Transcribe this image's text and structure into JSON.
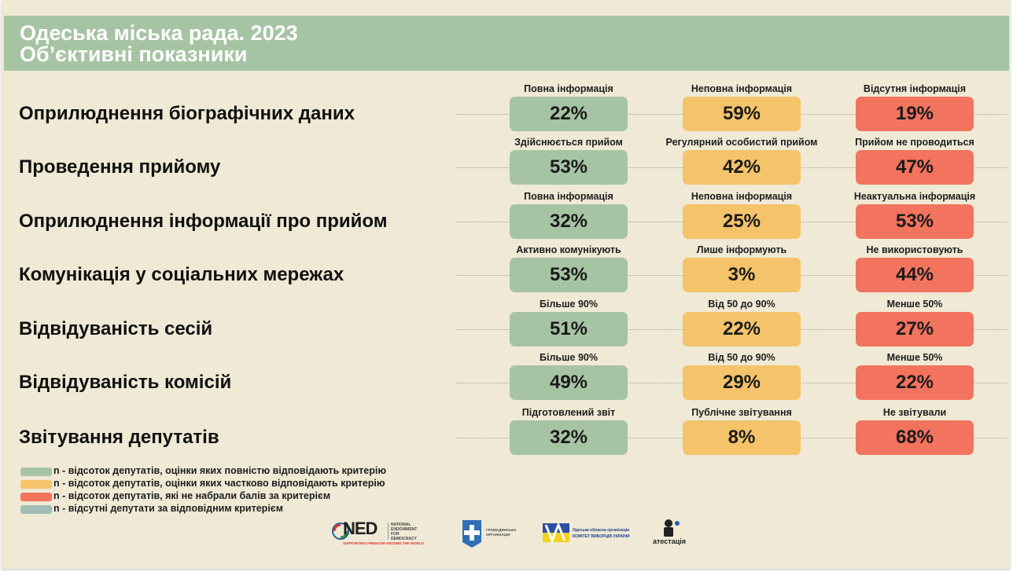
{
  "header": {
    "title_line1": "Одеська міська рада. 2023",
    "title_line2": "Об’єктивні показники"
  },
  "colors": {
    "header_bg": "#a6c4a3",
    "slide_bg": "#efe9d5",
    "full": "#a6c4a3",
    "partial": "#f4c36a",
    "none": "#f2735e",
    "absent": "#9fbfb6"
  },
  "rows": [
    {
      "title": "Оприлюднення біографічних даних",
      "cells": [
        {
          "label": "Повна інформація",
          "value": "22%"
        },
        {
          "label": "Неповна інформація",
          "value": "59%"
        },
        {
          "label": "Відсутня інформація",
          "value": "19%"
        }
      ]
    },
    {
      "title": "Проведення прийому",
      "cells": [
        {
          "label": "Здійснюється прийом",
          "value": "53%"
        },
        {
          "label": "Регулярний особистий прийом",
          "value": "42%"
        },
        {
          "label": "Прийом не проводиться",
          "value": "47%"
        }
      ]
    },
    {
      "title": "Оприлюднення інформації про прийом",
      "cells": [
        {
          "label": "Повна інформація",
          "value": "32%"
        },
        {
          "label": "Неповна інформація",
          "value": "25%"
        },
        {
          "label": "Неактуальна інформація",
          "value": "53%"
        }
      ]
    },
    {
      "title": "Комунікація у соціальних мережах",
      "cells": [
        {
          "label": "Активно комунікують",
          "value": "53%"
        },
        {
          "label": "Лише інформують",
          "value": "3%"
        },
        {
          "label": "Не використовують",
          "value": "44%"
        }
      ]
    },
    {
      "title": "Відвідуваність сесій",
      "cells": [
        {
          "label": "Більше 90%",
          "value": "51%"
        },
        {
          "label": "Від 50 до 90%",
          "value": "22%"
        },
        {
          "label": "Менше 50%",
          "value": "27%"
        }
      ]
    },
    {
      "title": "Відвідуваність комісій",
      "cells": [
        {
          "label": "Більше 90%",
          "value": "49%"
        },
        {
          "label": "Від 50 до 90%",
          "value": "29%"
        },
        {
          "label": "Менше 50%",
          "value": "22%"
        }
      ]
    },
    {
      "title": "Звітування депутатів",
      "cells": [
        {
          "label": "Підготовлений звіт",
          "value": "32%"
        },
        {
          "label": "Публічне звітування",
          "value": "8%"
        },
        {
          "label": "Не звітували",
          "value": "68%"
        }
      ]
    }
  ],
  "legend": [
    {
      "text": "n - відсоток депутатів, оцінки яких повністю відповідають критерію",
      "color": "#a6c4a3"
    },
    {
      "text": "n - відсоток депутатів, оцінки яких частково відповідають критерію",
      "color": "#f4c36a"
    },
    {
      "text": "n - відсоток депутатів, які не набрали балів за критерієм",
      "color": "#f2735e"
    },
    {
      "text": "n - відсутні депутати за відповідним критерієм",
      "color": "#9fbfb6"
    }
  ],
  "logos": {
    "ned_mark": "NED",
    "ned_name": "NATIONAL ENDOWMENT FOR DEMOCRACY",
    "ned_tagline": "SUPPORTING FREEDOM AROUND THE WORLD",
    "plus_org": "ГРОМАДЯНСЬКА ОРГАНІЗАЦІЯ",
    "cvu_org": "Одеська обласна організація",
    "cvu_name": "КОМІТЕТ ВИБОРЦІВ УКРАЇНИ",
    "atest": "атестація"
  }
}
